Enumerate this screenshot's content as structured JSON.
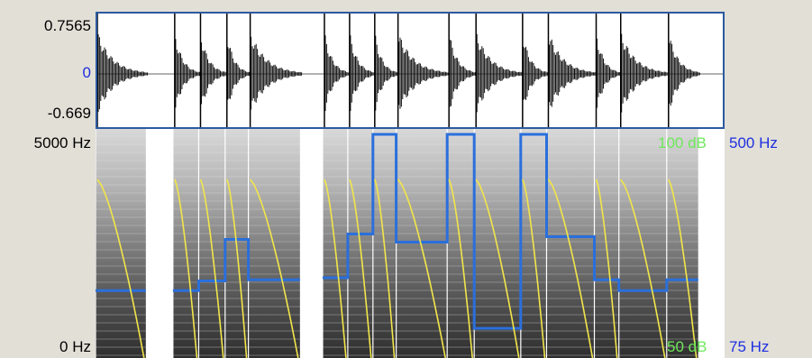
{
  "waveform": {
    "y_max_label": "0.7565",
    "y_zero_label": "0",
    "y_min_label": "-0.669",
    "colors": {
      "wave": "#111111",
      "border": "#2c5aa0",
      "zero_label": "#1e2fe0"
    }
  },
  "spectrogram": {
    "freq_top_label": "5000 Hz",
    "freq_bottom_label": "0 Hz",
    "intensity_top_label": "100 dB",
    "intensity_bottom_label": "50 dB",
    "pitch_top_label": "500 Hz",
    "pitch_bottom_label": "75 Hz",
    "colors": {
      "pitch": "#2a6fdc",
      "intensity": "#f2e64a",
      "intensity_label": "#6ee85a",
      "pitch_label": "#1e2fe0"
    }
  },
  "segments": [
    {
      "start": 0.0,
      "end": 0.08,
      "pitch_hz": 200,
      "intensity_db": 89
    },
    {
      "start": 0.123,
      "end": 0.164,
      "pitch_hz": 200,
      "intensity_db": 89
    },
    {
      "start": 0.164,
      "end": 0.206,
      "pitch_hz": 218,
      "intensity_db": 89
    },
    {
      "start": 0.206,
      "end": 0.243,
      "pitch_hz": 295,
      "intensity_db": 89
    },
    {
      "start": 0.243,
      "end": 0.325,
      "pitch_hz": 220,
      "intensity_db": 89
    },
    {
      "start": 0.361,
      "end": 0.401,
      "pitch_hz": 224,
      "intensity_db": 89
    },
    {
      "start": 0.401,
      "end": 0.441,
      "pitch_hz": 305,
      "intensity_db": 89
    },
    {
      "start": 0.441,
      "end": 0.478,
      "pitch_hz": 490,
      "intensity_db": 89
    },
    {
      "start": 0.478,
      "end": 0.559,
      "pitch_hz": 290,
      "intensity_db": 89
    },
    {
      "start": 0.559,
      "end": 0.602,
      "pitch_hz": 490,
      "intensity_db": 89
    },
    {
      "start": 0.602,
      "end": 0.676,
      "pitch_hz": 130,
      "intensity_db": 89
    },
    {
      "start": 0.676,
      "end": 0.717,
      "pitch_hz": 490,
      "intensity_db": 89
    },
    {
      "start": 0.717,
      "end": 0.793,
      "pitch_hz": 300,
      "intensity_db": 89
    },
    {
      "start": 0.793,
      "end": 0.832,
      "pitch_hz": 220,
      "intensity_db": 89
    },
    {
      "start": 0.832,
      "end": 0.908,
      "pitch_hz": 200,
      "intensity_db": 89
    },
    {
      "start": 0.908,
      "end": 0.958,
      "pitch_hz": 220,
      "intensity_db": 89
    }
  ]
}
